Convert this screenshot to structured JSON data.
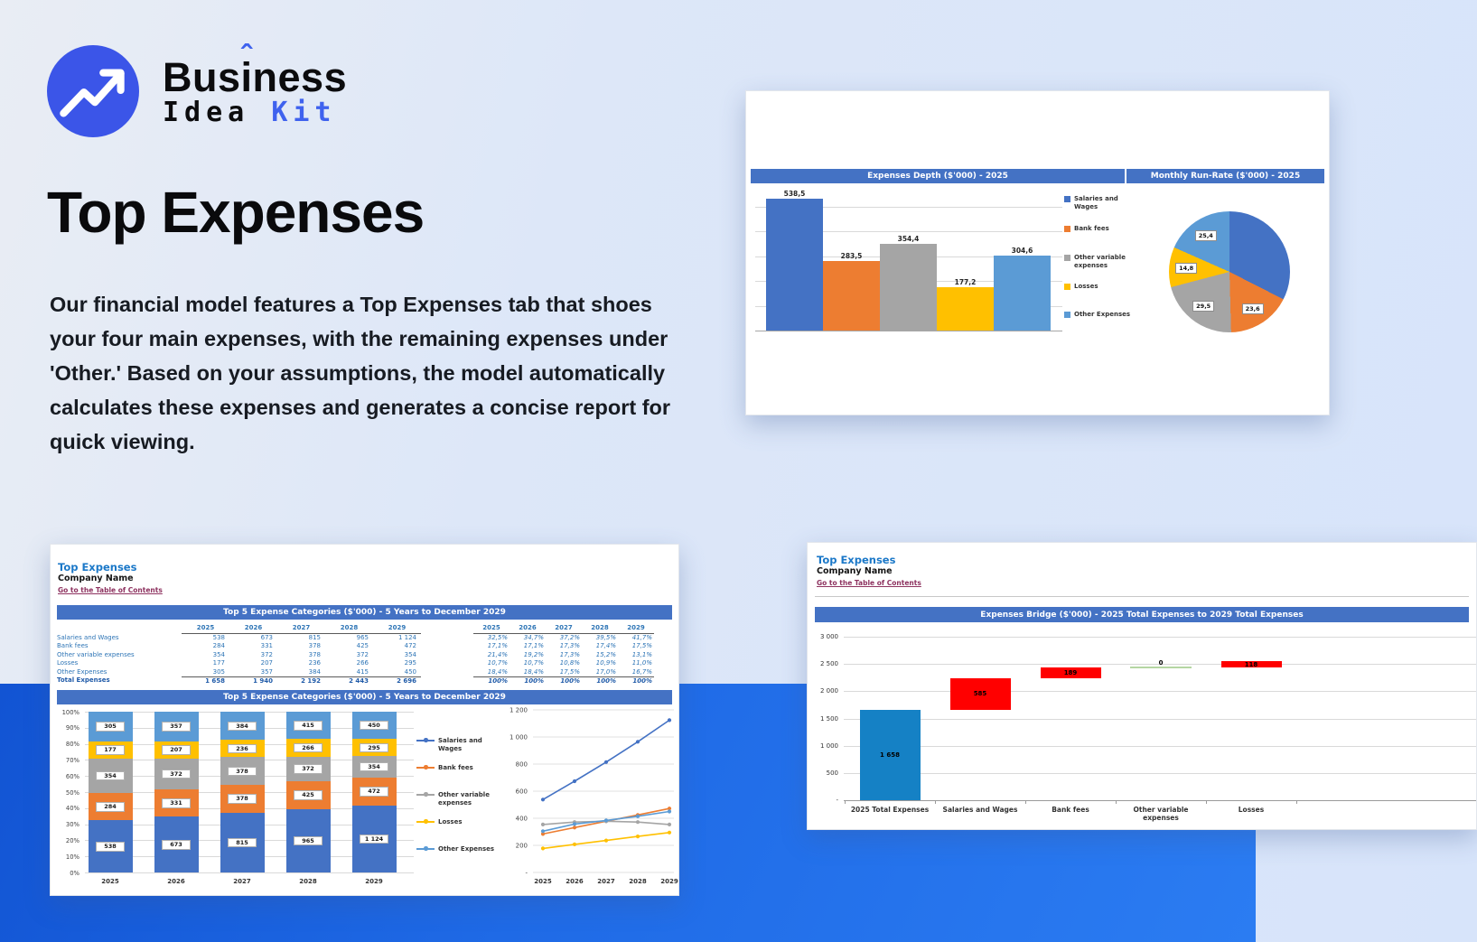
{
  "brand": {
    "logo_icon": "trending-up-arrow",
    "circle_color": "#3b55e8",
    "word_pre": "Bus",
    "word_i": "i",
    "word_caret": "ˆ",
    "word_post": "ness",
    "line2_word1": "Idea",
    "line2_word2": "Kit",
    "kit_color": "#3f62ee"
  },
  "hero": {
    "title": "Top Expenses",
    "description": "Our financial model features a Top Expenses tab that shoes your four main expenses, with the remaining expenses under 'Other.' Based on your assumptions, the model automatically calculates these expenses and generates a concise report for quick viewing."
  },
  "palette": {
    "excel_header_blue": "#4472C4",
    "series_salaries": "#4472C4",
    "series_bank_fees": "#ED7D31",
    "series_other_variable": "#A5A5A5",
    "series_losses": "#FFC000",
    "series_other_expenses": "#5B9BD5",
    "waterfall_total": "#1581C5",
    "waterfall_increase": "#FF0000",
    "waterfall_zero": "#B5D6A3",
    "sheet_title_blue": "#1B78C8",
    "link_maroon": "#8E3360",
    "band_blue": "#1F6AE6"
  },
  "report_card": {
    "header_left": "Expenses Depth ($'000) - 2025",
    "header_right": "Monthly Run-Rate ($'000) - 2025",
    "legend": [
      {
        "name": "Salaries and Wages",
        "color": "#4472C4"
      },
      {
        "name": "Bank fees",
        "color": "#ED7D31"
      },
      {
        "name": "Other variable expenses",
        "color": "#A5A5A5"
      },
      {
        "name": "Losses",
        "color": "#FFC000"
      },
      {
        "name": "Other Expenses",
        "color": "#5B9BD5"
      }
    ]
  },
  "sheet1": {
    "sheet_title": "Top Expenses",
    "company": "Company Name",
    "toc_link": "Go to the Table of Contents",
    "section1_title": "Top 5 Expense Categories ($'000) - 5 Years to December 2029",
    "section2_title": "Top 5 Expense Categories ($'000) - 5 Years to December 2029",
    "table": {
      "years": [
        "2025",
        "2026",
        "2027",
        "2028",
        "2029"
      ],
      "rows": [
        {
          "label": "Salaries and Wages",
          "values": [
            "538",
            "673",
            "815",
            "965",
            "1 124"
          ],
          "pct": [
            "32,5%",
            "34,7%",
            "37,2%",
            "39,5%",
            "41,7%"
          ]
        },
        {
          "label": "Bank fees",
          "values": [
            "284",
            "331",
            "378",
            "425",
            "472"
          ],
          "pct": [
            "17,1%",
            "17,1%",
            "17,3%",
            "17,4%",
            "17,5%"
          ]
        },
        {
          "label": "Other variable expenses",
          "values": [
            "354",
            "372",
            "378",
            "372",
            "354"
          ],
          "pct": [
            "21,4%",
            "19,2%",
            "17,3%",
            "15,2%",
            "13,1%"
          ]
        },
        {
          "label": "Losses",
          "values": [
            "177",
            "207",
            "236",
            "266",
            "295"
          ],
          "pct": [
            "10,7%",
            "10,7%",
            "10,8%",
            "10,9%",
            "11,0%"
          ]
        },
        {
          "label": "Other Expenses",
          "values": [
            "305",
            "357",
            "384",
            "415",
            "450"
          ],
          "pct": [
            "18,4%",
            "18,4%",
            "17,5%",
            "17,0%",
            "16,7%"
          ]
        },
        {
          "label": "Total Expenses",
          "values": [
            "1 658",
            "1 940",
            "2 192",
            "2 443",
            "2 696"
          ],
          "pct": [
            "100%",
            "100%",
            "100%",
            "100%",
            "100%"
          ],
          "total": true
        }
      ]
    },
    "legend": [
      {
        "name": "Salaries and Wages",
        "color": "#4472C4"
      },
      {
        "name": "Bank fees",
        "color": "#ED7D31"
      },
      {
        "name": "Other variable expenses",
        "color": "#A5A5A5"
      },
      {
        "name": "Losses",
        "color": "#FFC000"
      },
      {
        "name": "Other Expenses",
        "color": "#5B9BD5"
      }
    ]
  },
  "sheet2": {
    "sheet_title": "Top Expenses",
    "company": "Company Name",
    "toc_link": "Go to the Table of Contents",
    "section_title": "Expenses Bridge ($'000) - 2025 Total Expenses to 2029 Total Expenses"
  },
  "chart_data": [
    {
      "id": "expenses-depth",
      "type": "bar",
      "title": "Expenses Depth ($'000) - 2025",
      "categories": [
        "Salaries and Wages",
        "Bank fees",
        "Other variable expenses",
        "Losses",
        "Other Expenses"
      ],
      "values": [
        538.5,
        283.5,
        354.4,
        177.2,
        304.6
      ],
      "data_labels": [
        "538,5",
        "283,5",
        "354,4",
        "177,2",
        "304,6"
      ],
      "colors": [
        "#4472C4",
        "#ED7D31",
        "#A5A5A5",
        "#FFC000",
        "#5B9BD5"
      ],
      "ylim": [
        0,
        600
      ],
      "grid_step": 100,
      "y_axis_labels_visible": false,
      "legend_position": "right"
    },
    {
      "id": "monthly-run-rate",
      "type": "pie",
      "title": "Monthly Run-Rate ($'000) - 2025",
      "start": "12-o-clock-clockwise",
      "slices": [
        {
          "name": "Salaries and Wages",
          "value": 44.9,
          "label": "44,9",
          "label_visible": false,
          "color": "#4472C4"
        },
        {
          "name": "Bank fees",
          "value": 23.6,
          "label": "23,6",
          "label_visible": true,
          "color": "#ED7D31"
        },
        {
          "name": "Other variable expenses",
          "value": 29.5,
          "label": "29,5",
          "label_visible": true,
          "color": "#A5A5A5"
        },
        {
          "name": "Losses",
          "value": 14.8,
          "label": "14,8",
          "label_visible": true,
          "color": "#FFC000"
        },
        {
          "name": "Other Expenses",
          "value": 25.4,
          "label": "25,4",
          "label_visible": true,
          "color": "#5B9BD5"
        }
      ]
    },
    {
      "id": "top5-stacked",
      "type": "bar",
      "subtype": "stacked-100pct",
      "title": "Top 5 Expense Categories ($'000) - 5 Years to December 2029",
      "categories": [
        "2025",
        "2026",
        "2027",
        "2028",
        "2029"
      ],
      "series": [
        {
          "name": "Salaries and Wages",
          "color": "#4472C4",
          "values": [
            538,
            673,
            815,
            965,
            1124
          ],
          "labels": [
            "538",
            "673",
            "815",
            "965",
            "1 124"
          ]
        },
        {
          "name": "Bank fees",
          "color": "#ED7D31",
          "values": [
            284,
            331,
            378,
            425,
            472
          ],
          "labels": [
            "284",
            "331",
            "378",
            "425",
            "472"
          ]
        },
        {
          "name": "Other variable expenses",
          "color": "#A5A5A5",
          "values": [
            354,
            372,
            378,
            372,
            354
          ],
          "labels": [
            "354",
            "372",
            "378",
            "372",
            "354"
          ]
        },
        {
          "name": "Losses",
          "color": "#FFC000",
          "values": [
            177,
            207,
            236,
            266,
            295
          ],
          "labels": [
            "177",
            "207",
            "236",
            "266",
            "295"
          ]
        },
        {
          "name": "Other Expenses",
          "color": "#5B9BD5",
          "values": [
            305,
            357,
            384,
            415,
            450
          ],
          "labels": [
            "305",
            "357",
            "384",
            "415",
            "450"
          ]
        }
      ],
      "y_ticks": [
        "0%",
        "10%",
        "20%",
        "30%",
        "40%",
        "50%",
        "60%",
        "70%",
        "80%",
        "90%",
        "100%"
      ],
      "stack_order_bottom_to_top": [
        "Salaries and Wages",
        "Bank fees",
        "Other variable expenses",
        "Losses",
        "Other Expenses"
      ]
    },
    {
      "id": "top5-lines",
      "type": "line",
      "categories": [
        "2025",
        "2026",
        "2027",
        "2028",
        "2029"
      ],
      "series": [
        {
          "name": "Salaries and Wages",
          "color": "#4472C4",
          "values": [
            538,
            673,
            815,
            965,
            1124
          ]
        },
        {
          "name": "Bank fees",
          "color": "#ED7D31",
          "values": [
            284,
            331,
            378,
            425,
            472
          ]
        },
        {
          "name": "Other variable expenses",
          "color": "#A5A5A5",
          "values": [
            354,
            372,
            378,
            372,
            354
          ]
        },
        {
          "name": "Losses",
          "color": "#FFC000",
          "values": [
            177,
            207,
            236,
            266,
            295
          ]
        },
        {
          "name": "Other Expenses",
          "color": "#5B9BD5",
          "values": [
            305,
            357,
            384,
            415,
            450
          ]
        }
      ],
      "ylim": [
        0,
        1200
      ],
      "grid": true,
      "y_ticks": [
        "-",
        "200",
        "400",
        "600",
        "800",
        "1 000",
        "1 200"
      ]
    },
    {
      "id": "expenses-bridge",
      "type": "waterfall",
      "title": "Expenses Bridge ($'000) - 2025 Total Expenses to 2029 Total Expenses",
      "categories": [
        "2025 Total Expenses",
        "Salaries and Wages",
        "Bank fees",
        "Other variable expenses",
        "Losses"
      ],
      "steps": [
        {
          "name": "2025 Total Expenses",
          "start": 0,
          "end": 1658,
          "label": "1 658",
          "kind": "total"
        },
        {
          "name": "Salaries and Wages",
          "start": 1658,
          "end": 2243,
          "label": "585",
          "kind": "increase"
        },
        {
          "name": "Bank fees",
          "start": 2243,
          "end": 2432,
          "label": "189",
          "kind": "increase"
        },
        {
          "name": "Other variable expenses",
          "start": 2432,
          "end": 2432,
          "label": "0",
          "kind": "zero"
        },
        {
          "name": "Losses",
          "start": 2432,
          "end": 2550,
          "label": "118",
          "kind": "increase"
        }
      ],
      "ylim": [
        0,
        3000
      ],
      "y_ticks": [
        "-",
        "500",
        "1 000",
        "1 500",
        "2 000",
        "2 500",
        "3 000"
      ]
    }
  ]
}
